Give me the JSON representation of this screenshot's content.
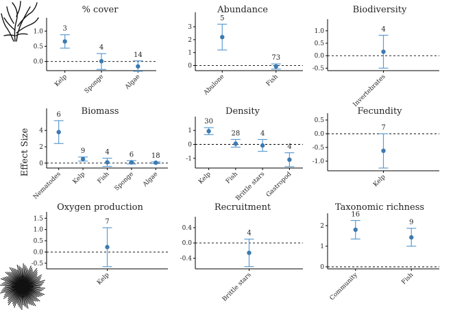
{
  "ylabel": "Effect Size",
  "colors": {
    "point": "#3d7ab0",
    "error_bar": "#5b9bd0",
    "axis": "#000000",
    "reference_line": "#000000"
  },
  "icons": [
    "kelp-icon",
    "urchin-icon"
  ],
  "chart_data": [
    {
      "type": "scatter",
      "title": "% cover",
      "categories": [
        "Kelp",
        "Sponge",
        "Algae"
      ],
      "values": [
        0.66,
        0.01,
        -0.16
      ],
      "lower": [
        0.44,
        -0.26,
        -0.32
      ],
      "upper": [
        0.88,
        0.26,
        0.02
      ],
      "n": [
        "3",
        "4",
        "14"
      ],
      "ylim": [
        -0.3,
        1.3
      ],
      "yticks": [
        "0.0",
        "0.5",
        "1.0"
      ],
      "ytick_values": [
        0,
        0.5,
        1.0
      ],
      "ref_line": 0
    },
    {
      "type": "scatter",
      "title": "Abundance",
      "categories": [
        "Abulone",
        "Fish"
      ],
      "values": [
        2.2,
        -0.08
      ],
      "lower": [
        1.2,
        -0.28
      ],
      "upper": [
        3.2,
        0.12
      ],
      "n": [
        "5",
        "73"
      ],
      "ylim": [
        -0.4,
        3.8
      ],
      "yticks": [
        "0",
        "1",
        "2",
        "3"
      ],
      "ytick_values": [
        0,
        1,
        2,
        3
      ],
      "ref_line": 0
    },
    {
      "type": "scatter",
      "title": "Biodiversity",
      "categories": [
        "Invertebrates"
      ],
      "values": [
        0.16
      ],
      "lower": [
        -0.5
      ],
      "upper": [
        0.82
      ],
      "n": [
        "4"
      ],
      "ylim": [
        -0.6,
        1.3
      ],
      "yticks": [
        "-0.5",
        "0.0",
        "0.5",
        "1.0"
      ],
      "ytick_values": [
        -0.5,
        0,
        0.5,
        1.0
      ],
      "ref_line": 0
    },
    {
      "type": "scatter",
      "title": "Biomass",
      "categories": [
        "Nematodes",
        "Kelp",
        "Fish",
        "Sponge",
        "Algae"
      ],
      "values": [
        3.8,
        0.5,
        0.1,
        0.1,
        0.05
      ],
      "lower": [
        2.4,
        0.25,
        -0.4,
        -0.1,
        -0.05
      ],
      "upper": [
        5.2,
        0.75,
        0.6,
        0.3,
        0.15
      ],
      "n": [
        "6",
        "9",
        "4",
        "6",
        "18"
      ],
      "ylim": [
        -0.6,
        6.2
      ],
      "yticks": [
        "0",
        "2",
        "4"
      ],
      "ytick_values": [
        0,
        2,
        4
      ],
      "ref_line": 0
    },
    {
      "type": "scatter",
      "title": "Density",
      "categories": [
        "Kelp",
        "Fish",
        "Brittle stars",
        "Gastropod"
      ],
      "values": [
        0.95,
        0.05,
        -0.08,
        -1.1
      ],
      "lower": [
        0.7,
        -0.2,
        -0.5,
        -1.6
      ],
      "upper": [
        1.2,
        0.35,
        0.35,
        -0.6
      ],
      "n": [
        "30",
        "28",
        "4",
        "4"
      ],
      "ylim": [
        -1.7,
        1.7
      ],
      "yticks": [
        "-1",
        "0",
        "1"
      ],
      "ytick_values": [
        -1,
        0,
        1
      ],
      "ref_line": 0
    },
    {
      "type": "scatter",
      "title": "Fecundity",
      "categories": [
        "Kelp"
      ],
      "values": [
        -0.62
      ],
      "lower": [
        -1.25
      ],
      "upper": [
        0.0
      ],
      "n": [
        "7"
      ],
      "ylim": [
        -1.35,
        0.6
      ],
      "yticks": [
        "0.5",
        "0.0",
        "-0.5",
        "-1.0"
      ],
      "ytick_values": [
        0.5,
        0,
        -0.5,
        -1.0
      ],
      "ref_line": 0
    },
    {
      "type": "scatter",
      "title": "Oxygen production",
      "categories": [
        "Kelp"
      ],
      "values": [
        0.22
      ],
      "lower": [
        -0.65
      ],
      "upper": [
        1.08
      ],
      "n": [
        "7"
      ],
      "ylim": [
        -0.75,
        1.6
      ],
      "yticks": [
        "1.5",
        "1.0",
        "0.5",
        "0.0",
        "-0.5"
      ],
      "ytick_values": [
        1.5,
        1.0,
        0.5,
        0,
        -0.5
      ],
      "ref_line": 0
    },
    {
      "type": "scatter",
      "title": "Recruitment",
      "categories": [
        "Brittle stars"
      ],
      "values": [
        -0.26
      ],
      "lower": [
        -0.62
      ],
      "upper": [
        0.1
      ],
      "n": [
        "4"
      ],
      "ylim": [
        -0.68,
        0.58
      ],
      "yticks": [
        "0.4",
        "0.0",
        "-0.4"
      ],
      "ytick_values": [
        0.4,
        0,
        -0.4
      ],
      "ref_line": 0
    },
    {
      "type": "scatter",
      "title": "Taxonomic richness",
      "categories": [
        "Community",
        "Fish"
      ],
      "values": [
        1.8,
        1.43
      ],
      "lower": [
        1.35,
        1.0
      ],
      "upper": [
        2.25,
        1.87
      ],
      "n": [
        "16",
        "9"
      ],
      "ylim": [
        -0.1,
        2.4
      ],
      "yticks": [
        "2",
        "1",
        "0"
      ],
      "ytick_values": [
        2,
        1,
        0
      ],
      "ref_line": 0
    }
  ]
}
